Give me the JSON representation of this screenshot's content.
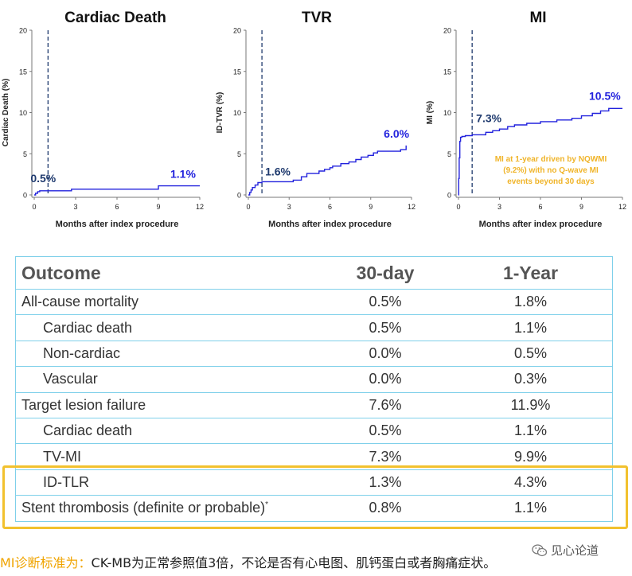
{
  "chart_data": [
    {
      "type": "line",
      "title": "Cardiac Death",
      "ylabel": "Cardiac Death (%)",
      "xlabel": "Months after index procedure",
      "xlim": [
        0,
        12
      ],
      "ylim": [
        0,
        20
      ],
      "xticks": [
        "0",
        "3",
        "6",
        "9",
        "12"
      ],
      "yticks": [
        "0",
        "5",
        "10",
        "15",
        "20"
      ],
      "reference_line_x": 1,
      "annotations": [
        "0.5%",
        "1.1%"
      ],
      "series": [
        {
          "x": [
            0,
            0.1,
            0.25,
            0.4,
            1,
            2.7,
            9,
            12
          ],
          "y": [
            0,
            0.2,
            0.4,
            0.5,
            0.5,
            0.7,
            1.1,
            1.1
          ]
        }
      ]
    },
    {
      "type": "line",
      "title": "TVR",
      "ylabel": "ID-TVR (%)",
      "xlabel": "Months after index procedure",
      "xlim": [
        0,
        12
      ],
      "ylim": [
        0,
        20
      ],
      "xticks": [
        "0",
        "3",
        "6",
        "9",
        "12"
      ],
      "yticks": [
        "0",
        "5",
        "10",
        "15",
        "20"
      ],
      "reference_line_x": 1,
      "annotations": [
        "1.6%",
        "6.0%"
      ],
      "series": [
        {
          "x": [
            0,
            0.1,
            0.2,
            0.3,
            0.5,
            0.7,
            1,
            3.3,
            3.9,
            4.3,
            5.2,
            5.6,
            6.0,
            6.2,
            6.8,
            7.4,
            7.9,
            8.3,
            8.8,
            9.2,
            9.5,
            11.2,
            11.6,
            11.6
          ],
          "y": [
            0,
            0.3,
            0.6,
            0.9,
            1.2,
            1.5,
            1.6,
            1.8,
            2.2,
            2.6,
            2.9,
            3.1,
            3.3,
            3.5,
            3.8,
            4.0,
            4.3,
            4.6,
            4.8,
            5.1,
            5.3,
            5.5,
            5.6,
            6.0
          ]
        }
      ]
    },
    {
      "type": "line",
      "title": "MI",
      "ylabel": "MI (%)",
      "xlabel": "Months after index procedure",
      "xlim": [
        0,
        12
      ],
      "ylim": [
        0,
        20
      ],
      "xticks": [
        "0",
        "3",
        "6",
        "9",
        "12"
      ],
      "yticks": [
        "0",
        "5",
        "10",
        "15",
        "20"
      ],
      "reference_line_x": 1,
      "annotations": [
        "7.3%",
        "10.5%"
      ],
      "note": "MI at 1-year driven by NQWMI (9.2%) with no Q-wave MI events beyond 30 days",
      "series": [
        {
          "x": [
            0,
            0.02,
            0.05,
            0.1,
            0.15,
            0.25,
            0.5,
            1,
            2.0,
            2.5,
            3.0,
            3.6,
            4.1,
            5.0,
            6.0,
            7.2,
            8.3,
            9.0,
            9.8,
            10.4,
            11.0,
            12.0
          ],
          "y": [
            0,
            2.0,
            4.5,
            6.5,
            7.0,
            7.1,
            7.2,
            7.3,
            7.6,
            7.8,
            8.0,
            8.3,
            8.5,
            8.7,
            8.9,
            9.1,
            9.3,
            9.6,
            9.9,
            10.2,
            10.5,
            10.5
          ]
        }
      ]
    },
    {
      "type": "table",
      "columns": [
        "Outcome",
        "30-day",
        "1-Year"
      ],
      "rows": [
        {
          "label": "All-cause mortality",
          "indent": false,
          "d30": "0.5%",
          "y1": "1.8%"
        },
        {
          "label": "Cardiac death",
          "indent": true,
          "d30": "0.5%",
          "y1": "1.1%"
        },
        {
          "label": "Non-cardiac",
          "indent": true,
          "d30": "0.0%",
          "y1": "0.5%"
        },
        {
          "label": "Vascular",
          "indent": true,
          "d30": "0.0%",
          "y1": "0.3%"
        },
        {
          "label": "Target lesion failure",
          "indent": false,
          "d30": "7.6%",
          "y1": "11.9%"
        },
        {
          "label": "Cardiac death",
          "indent": true,
          "d30": "0.5%",
          "y1": "1.1%"
        },
        {
          "label": "TV-MI",
          "indent": true,
          "d30": "7.3%",
          "y1": "9.9%"
        },
        {
          "label": "ID-TLR",
          "indent": true,
          "d30": "1.3%",
          "y1": "4.3%"
        },
        {
          "label": "Stent thrombosis (definite or probable)",
          "sup": "*",
          "indent": false,
          "d30": "0.8%",
          "y1": "1.1%"
        }
      ]
    }
  ],
  "footnote": {
    "prefix": "MI诊断标准为：",
    "text": "CK-MB为正常参照值3倍，不论是否有心电图、肌钙蛋白或者胸痛症状。"
  },
  "watermark": {
    "text": "见心论道",
    "icon": "wechat-icon"
  },
  "colors": {
    "line": "#2222dd",
    "reference": "#1f3a6e",
    "table_border": "#7fd0ea",
    "highlight": "#f2c12e",
    "note": "#f0b429"
  }
}
